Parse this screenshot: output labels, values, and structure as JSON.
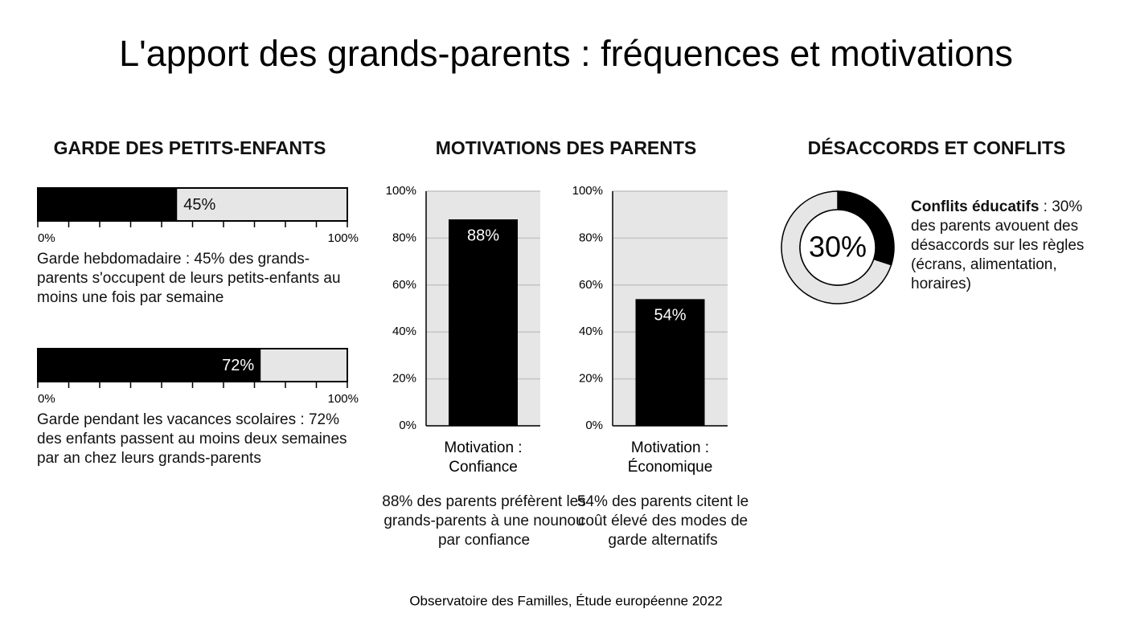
{
  "title": "L'apport des grands-parents : fréquences et motivations",
  "source": "Observatoire des Familles, Étude européenne 2022",
  "sections": [
    {
      "heading": "GARDE DES PETITS-ENFANTS"
    },
    {
      "heading": "MOTIVATIONS DES PARENTS"
    },
    {
      "heading": "DÉSACCORDS ET CONFLITS"
    }
  ],
  "chart_data": [
    {
      "type": "hbar",
      "values": [
        45
      ],
      "value_labels": [
        "45%"
      ],
      "color": "#000000",
      "xlim": [
        0,
        100
      ],
      "xticks": [
        {
          "value": 0,
          "label": "0%"
        },
        {
          "value": 100,
          "label": "100%"
        }
      ],
      "minor_xticks": [
        10,
        20,
        30,
        40,
        50,
        60,
        70,
        80,
        90
      ],
      "caption": "Garde hebdomadaire : 45% des grands-parents s'occupent de leurs petits-enfants au moins une fois par semaine"
    },
    {
      "type": "hbar",
      "values": [
        72
      ],
      "value_labels": [
        "72%"
      ],
      "color": "#000000",
      "xlim": [
        0,
        100
      ],
      "xticks": [
        {
          "value": 0,
          "label": "0%"
        },
        {
          "value": 100,
          "label": "100%"
        }
      ],
      "minor_xticks": [
        10,
        20,
        30,
        40,
        50,
        60,
        70,
        80,
        90
      ],
      "caption": "Garde pendant les vacances scolaires : 72% des enfants passent au moins deux semaines par an chez leurs grands-parents"
    },
    {
      "type": "bar",
      "categories": [
        "Motivation : Confiance"
      ],
      "values": [
        88
      ],
      "value_labels": [
        "88%"
      ],
      "color": "#000000",
      "ylim": [
        0,
        100
      ],
      "grid": true,
      "yticks": [
        {
          "value": 0,
          "label": "0%"
        },
        {
          "value": 20,
          "label": "20%"
        },
        {
          "value": 40,
          "label": "40%"
        },
        {
          "value": 60,
          "label": "60%"
        },
        {
          "value": 80,
          "label": "80%"
        },
        {
          "value": 100,
          "label": "100%"
        }
      ],
      "caption": "88% des parents préfèrent les grands-parents à une nounou par confiance"
    },
    {
      "type": "bar",
      "categories": [
        "Motivation : Économique"
      ],
      "values": [
        54
      ],
      "value_labels": [
        "54%"
      ],
      "color": "#000000",
      "ylim": [
        0,
        100
      ],
      "grid": true,
      "yticks": [
        {
          "value": 0,
          "label": "0%"
        },
        {
          "value": 20,
          "label": "20%"
        },
        {
          "value": 40,
          "label": "40%"
        },
        {
          "value": 60,
          "label": "60%"
        },
        {
          "value": 80,
          "label": "80%"
        },
        {
          "value": 100,
          "label": "100%"
        }
      ],
      "caption": "54% des parents citent le coût élevé des modes de garde alternatifs"
    },
    {
      "type": "donut",
      "values": [
        30,
        70
      ],
      "value_labels": [
        "30%",
        null
      ],
      "colors": [
        "#000000",
        "#e6e6e6"
      ],
      "caption_lead": "Conflits éducatifs",
      "caption": " : 30% des parents avouent des désaccords sur les règles (écrans, alimentation, horaires)"
    }
  ]
}
